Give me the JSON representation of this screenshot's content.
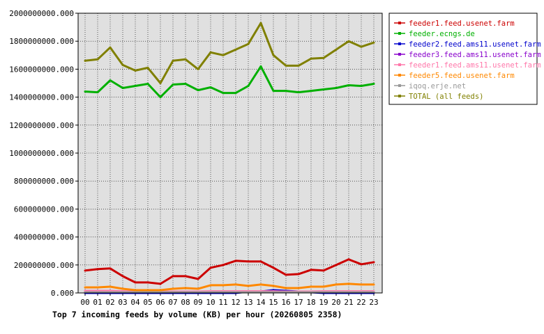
{
  "chart_data": {
    "type": "line",
    "title": "Top 7 incoming feeds by volume (KB) per hour (20260805 2358)",
    "xlabel": "",
    "ylabel": "",
    "categories": [
      "00",
      "01",
      "02",
      "03",
      "04",
      "05",
      "06",
      "07",
      "08",
      "09",
      "10",
      "11",
      "12",
      "13",
      "14",
      "15",
      "16",
      "17",
      "18",
      "19",
      "20",
      "21",
      "22",
      "23"
    ],
    "y_tick_labels": [
      "0.000",
      "200000000.000",
      "400000000.000",
      "600000000.000",
      "800000000.000",
      "1000000000.000",
      "1200000000.000",
      "1400000000.000",
      "1600000000.000",
      "1800000000.000",
      "2000000000.000"
    ],
    "ylim": [
      0,
      2000000000
    ],
    "grid": true,
    "legend_position": "right",
    "series": [
      {
        "name": "feeder1.feed.usenet.farm",
        "color": "#cc0000",
        "values": [
          160000000,
          170000000,
          175000000,
          120000000,
          75000000,
          75000000,
          65000000,
          120000000,
          120000000,
          100000000,
          180000000,
          200000000,
          230000000,
          225000000,
          225000000,
          180000000,
          130000000,
          135000000,
          165000000,
          160000000,
          200000000,
          240000000,
          205000000,
          220000000
        ]
      },
      {
        "name": "feeder.ecngs.de",
        "color": "#00b000",
        "values": [
          1440000000,
          1435000000,
          1520000000,
          1465000000,
          1480000000,
          1495000000,
          1400000000,
          1490000000,
          1495000000,
          1450000000,
          1470000000,
          1430000000,
          1430000000,
          1480000000,
          1620000000,
          1445000000,
          1445000000,
          1435000000,
          1445000000,
          1455000000,
          1465000000,
          1485000000,
          1480000000,
          1495000000
        ]
      },
      {
        "name": "feeder2.feed.ams11.usenet.farm",
        "color": "#0000cc",
        "values": [
          0,
          0,
          0,
          0,
          0,
          0,
          0,
          0,
          0,
          0,
          0,
          0,
          0,
          10000000,
          10000000,
          20000000,
          15000000,
          10000000,
          5000000,
          0,
          0,
          0,
          0,
          0
        ]
      },
      {
        "name": "feeder3.feed.ams11.usenet.farm",
        "color": "#8800cc",
        "values": [
          5000000,
          5000000,
          8000000,
          5000000,
          5000000,
          5000000,
          5000000,
          8000000,
          8000000,
          5000000,
          8000000,
          8000000,
          10000000,
          8000000,
          8000000,
          8000000,
          5000000,
          5000000,
          5000000,
          5000000,
          5000000,
          5000000,
          5000000,
          5000000
        ]
      },
      {
        "name": "feeder1.feed.ams11.usenet.farm",
        "color": "#ff77aa",
        "values": [
          15000000,
          15000000,
          15000000,
          12000000,
          10000000,
          10000000,
          8000000,
          10000000,
          10000000,
          10000000,
          12000000,
          12000000,
          12000000,
          12000000,
          12000000,
          12000000,
          10000000,
          10000000,
          10000000,
          12000000,
          12000000,
          12000000,
          12000000,
          12000000
        ]
      },
      {
        "name": "feeder5.feed.usenet.farm",
        "color": "#ff8800",
        "values": [
          40000000,
          40000000,
          45000000,
          30000000,
          20000000,
          20000000,
          20000000,
          30000000,
          35000000,
          30000000,
          55000000,
          55000000,
          60000000,
          50000000,
          60000000,
          50000000,
          35000000,
          35000000,
          45000000,
          45000000,
          60000000,
          65000000,
          60000000,
          60000000
        ]
      },
      {
        "name": "iqoq.erje.net",
        "color": "#999999",
        "values": [
          5000000,
          5000000,
          5000000,
          5000000,
          5000000,
          5000000,
          5000000,
          5000000,
          5000000,
          5000000,
          5000000,
          5000000,
          5000000,
          5000000,
          5000000,
          5000000,
          5000000,
          5000000,
          5000000,
          5000000,
          5000000,
          5000000,
          5000000,
          5000000
        ]
      },
      {
        "name": "TOTAL (all feeds)",
        "color": "#808000",
        "values": [
          1660000000,
          1670000000,
          1755000000,
          1630000000,
          1590000000,
          1610000000,
          1500000000,
          1660000000,
          1670000000,
          1600000000,
          1720000000,
          1700000000,
          1740000000,
          1780000000,
          1930000000,
          1700000000,
          1625000000,
          1625000000,
          1675000000,
          1680000000,
          1740000000,
          1800000000,
          1760000000,
          1790000000
        ]
      }
    ],
    "colors": {
      "plot_background": "#e0e0e0",
      "grid": "#000000",
      "axis": "#000000"
    }
  }
}
